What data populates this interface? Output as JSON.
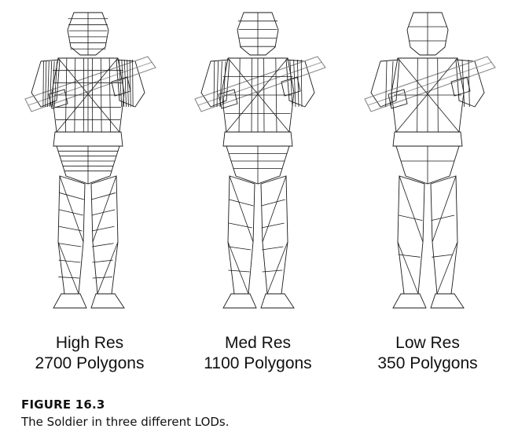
{
  "figure": {
    "number": "FIGURE 16.3",
    "caption": "The Soldier in three different LODs."
  },
  "models": [
    {
      "name": "High Res",
      "polygons": "2700 Polygons"
    },
    {
      "name": "Med Res",
      "polygons": "1100 Polygons"
    },
    {
      "name": "Low Res",
      "polygons": "350 Polygons"
    }
  ],
  "colors": {
    "wire": "#1a1a1a",
    "wire_light": "#888888"
  }
}
